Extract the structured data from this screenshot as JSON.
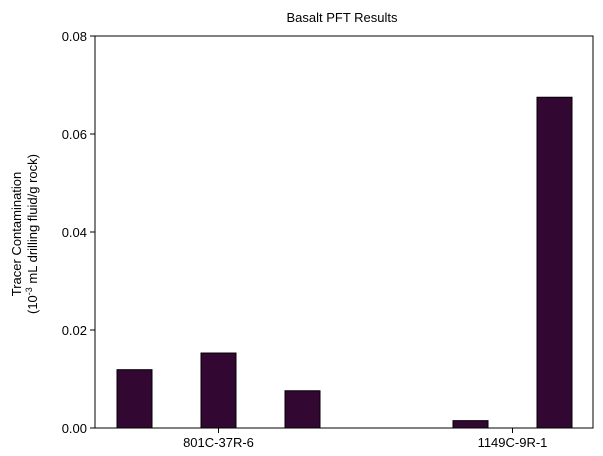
{
  "chart_data": {
    "type": "bar",
    "title": "Basalt PFT Results",
    "ylabel": {
      "line1": "Tracer Contamination",
      "line2_prefix": "(10",
      "line2_sup": "-3",
      "line2_suffix": " mL drilling fluid/g rock)"
    },
    "xlabel": "",
    "ylim": [
      0,
      0.08
    ],
    "yticks": [
      "0.00",
      "0.02",
      "0.04",
      "0.06",
      "0.08"
    ],
    "groups": [
      {
        "label": "801C-37R-6",
        "values": [
          0.0119,
          0.0153,
          0.0076
        ]
      },
      {
        "label": "1149C-9R-1",
        "values": [
          0.0015,
          0.0675
        ]
      }
    ],
    "bar_color": "#320732",
    "grid": false,
    "legend": "none"
  }
}
